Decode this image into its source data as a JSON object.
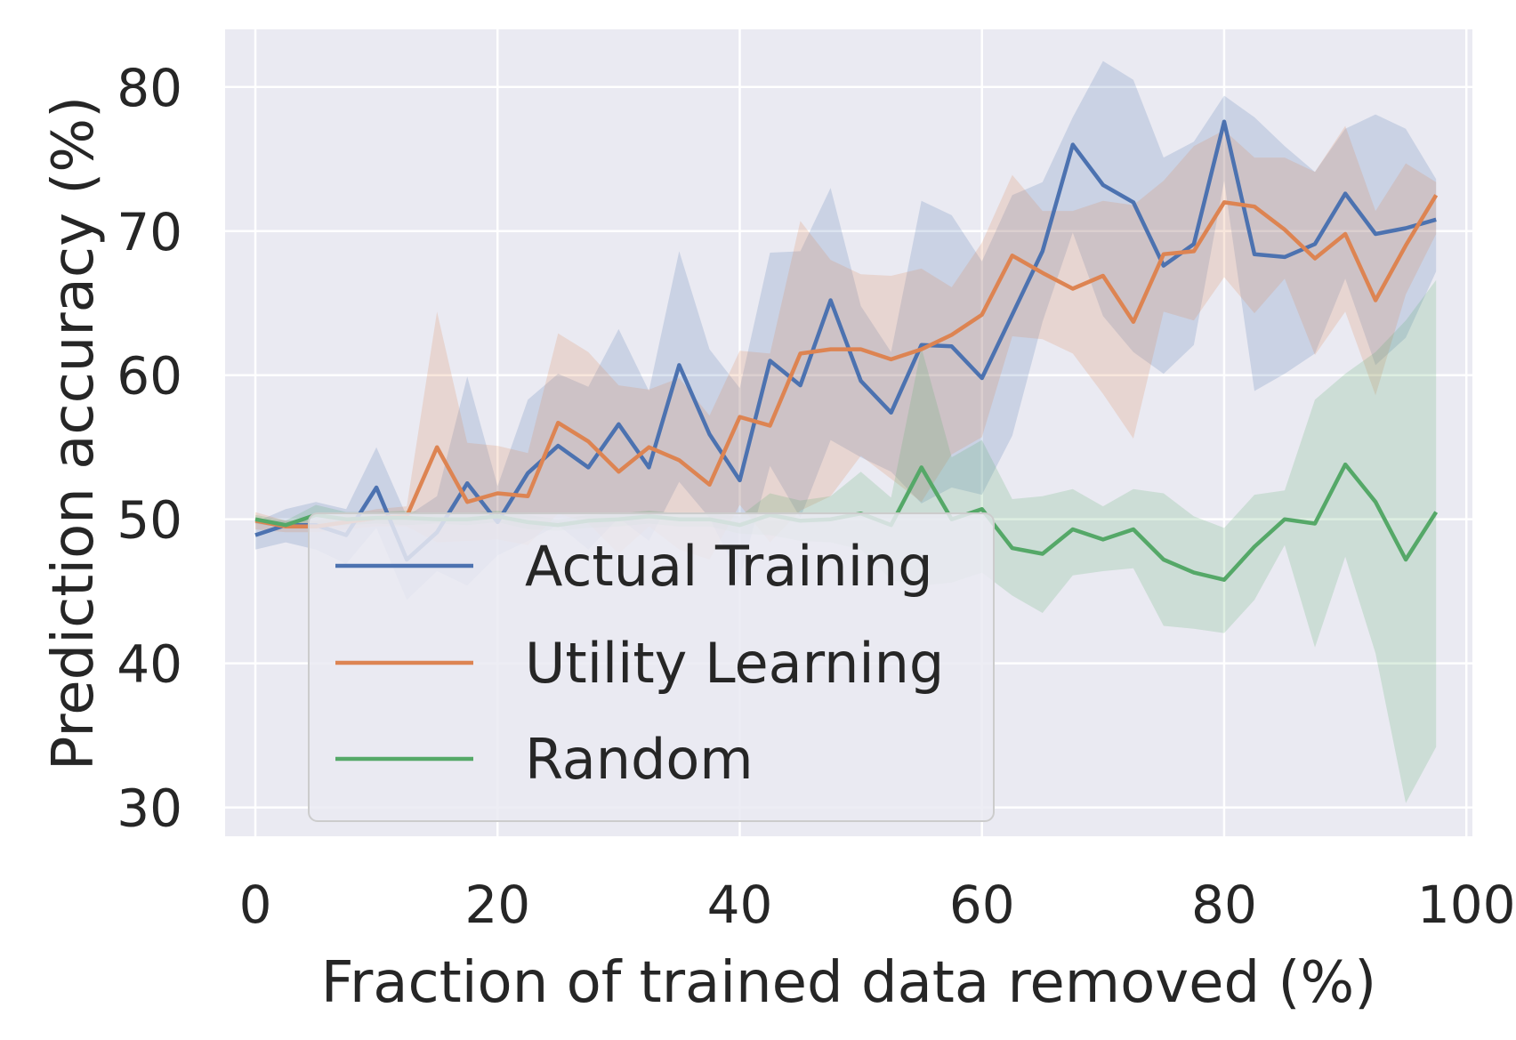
{
  "chart_data": {
    "type": "line",
    "title": "",
    "xlabel": "Fraction of trained data removed (%)",
    "ylabel": "Prediction accuracy (%)",
    "xlim": [
      -2.5,
      100.5
    ],
    "ylim": [
      28,
      84
    ],
    "xticks": [
      0,
      20,
      40,
      60,
      80,
      100
    ],
    "yticks": [
      30,
      40,
      50,
      60,
      70,
      80
    ],
    "grid": true,
    "legend_position": "lower-left",
    "x": [
      0,
      2.5,
      5,
      7.5,
      10,
      12.5,
      15,
      17.5,
      20,
      22.5,
      25,
      27.5,
      30,
      32.5,
      35,
      37.5,
      40,
      42.5,
      45,
      47.5,
      50,
      52.5,
      55,
      57.5,
      60,
      62.5,
      65,
      67.5,
      70,
      72.5,
      75,
      77.5,
      80,
      82.5,
      85,
      87.5,
      90,
      92.5,
      95,
      97.5
    ],
    "series": [
      {
        "name": "Actual Training",
        "color": "#4c72b0",
        "values": [
          48.9,
          49.6,
          49.6,
          48.9,
          52.2,
          47.2,
          49.1,
          52.5,
          49.8,
          53.2,
          55.1,
          53.6,
          56.6,
          53.6,
          60.7,
          55.9,
          52.7,
          61.0,
          59.3,
          65.2,
          59.6,
          57.4,
          62.1,
          62.0,
          59.8,
          64.2,
          68.6,
          76.0,
          73.2,
          72.0,
          67.6,
          69.1,
          77.6,
          68.4,
          68.2,
          69.1,
          72.6,
          69.8,
          70.2,
          70.8
        ],
        "lower": [
          47.9,
          48.4,
          47.9,
          46.9,
          49.4,
          44.4,
          46.4,
          45.4,
          47.5,
          48.5,
          49.6,
          47.9,
          50.1,
          48.5,
          52.6,
          50.1,
          45.9,
          53.7,
          50.1,
          55.5,
          54.3,
          53.3,
          51.1,
          52.2,
          51.7,
          55.8,
          63.7,
          69.9,
          64.1,
          61.6,
          60.1,
          62.1,
          73.5,
          58.9,
          60.1,
          61.5,
          66.7,
          60.7,
          62.6,
          67.2
        ],
        "upper": [
          49.8,
          50.7,
          51.2,
          50.7,
          55.0,
          50.2,
          51.6,
          59.9,
          52.3,
          58.3,
          60.1,
          59.2,
          63.2,
          58.9,
          68.6,
          61.8,
          59.1,
          68.5,
          68.6,
          73.0,
          64.8,
          61.6,
          72.1,
          71.1,
          67.9,
          72.5,
          73.4,
          77.9,
          81.8,
          80.5,
          75.1,
          76.2,
          79.4,
          77.9,
          75.9,
          74.1,
          77.1,
          78.1,
          77.1,
          73.6
        ]
      },
      {
        "name": "Utility Learning",
        "color": "#dd8452",
        "values": [
          49.9,
          49.5,
          49.5,
          49.8,
          50.1,
          50.2,
          55.0,
          51.2,
          51.8,
          51.6,
          56.7,
          55.4,
          53.3,
          55.0,
          54.1,
          52.4,
          57.1,
          56.5,
          61.5,
          61.8,
          61.8,
          61.1,
          61.8,
          62.8,
          64.2,
          68.3,
          67.1,
          66.0,
          66.9,
          63.7,
          68.4,
          68.6,
          72.0,
          71.7,
          70.1,
          68.1,
          69.8,
          65.2,
          69.0,
          72.5
        ],
        "lower": [
          49.3,
          49.1,
          49.1,
          49.3,
          49.5,
          49.5,
          48.4,
          48.5,
          48.6,
          48.2,
          50.4,
          49.7,
          47.6,
          49.5,
          47.9,
          47.2,
          51.0,
          48.4,
          50.6,
          51.6,
          54.4,
          52.8,
          51.2,
          54.5,
          55.7,
          62.7,
          62.5,
          61.5,
          58.7,
          55.6,
          64.4,
          63.8,
          66.8,
          64.3,
          66.7,
          61.4,
          64.4,
          58.6,
          65.6,
          69.8
        ],
        "upper": [
          50.5,
          49.9,
          49.9,
          50.3,
          50.7,
          50.9,
          64.4,
          55.3,
          55.1,
          54.6,
          62.9,
          61.6,
          59.3,
          59.0,
          59.8,
          57.2,
          61.7,
          61.5,
          70.7,
          68.0,
          67.0,
          66.9,
          67.4,
          66.1,
          69.2,
          73.9,
          71.4,
          71.4,
          72.1,
          71.8,
          73.5,
          75.9,
          77.0,
          75.1,
          75.1,
          74.1,
          77.3,
          71.4,
          74.7,
          73.4
        ]
      },
      {
        "name": "Random",
        "color": "#55a868",
        "values": [
          50.0,
          49.6,
          50.3,
          50.0,
          50.1,
          50.1,
          50.0,
          50.0,
          50.2,
          49.8,
          49.6,
          49.9,
          50.0,
          50.2,
          50.0,
          50.0,
          49.6,
          50.3,
          49.9,
          50.0,
          50.4,
          49.6,
          53.6,
          50.0,
          50.7,
          48.0,
          47.6,
          49.3,
          48.6,
          49.3,
          47.2,
          46.3,
          45.8,
          48.1,
          50.0,
          49.7,
          53.8,
          51.2,
          47.2,
          50.5
        ],
        "lower": [
          49.7,
          49.4,
          49.5,
          49.6,
          49.7,
          49.6,
          49.7,
          49.6,
          49.8,
          49.3,
          49.2,
          49.4,
          49.5,
          49.7,
          49.5,
          49.5,
          49.0,
          48.9,
          48.5,
          48.4,
          47.9,
          45.8,
          45.4,
          45.6,
          46.3,
          44.7,
          43.5,
          46.1,
          46.4,
          46.6,
          42.6,
          42.4,
          42.1,
          44.4,
          48.2,
          41.1,
          47.4,
          40.7,
          30.3,
          34.2
        ],
        "upper": [
          50.3,
          49.9,
          51.0,
          50.5,
          50.5,
          50.6,
          50.3,
          50.4,
          50.6,
          50.3,
          50.0,
          50.3,
          50.4,
          50.6,
          50.4,
          50.4,
          50.2,
          51.8,
          51.3,
          51.6,
          53.3,
          51.5,
          61.9,
          54.3,
          55.5,
          51.4,
          51.6,
          52.1,
          50.9,
          52.1,
          51.8,
          50.2,
          49.4,
          51.7,
          52.0,
          58.3,
          60.1,
          61.6,
          63.8,
          66.6
        ]
      }
    ]
  }
}
